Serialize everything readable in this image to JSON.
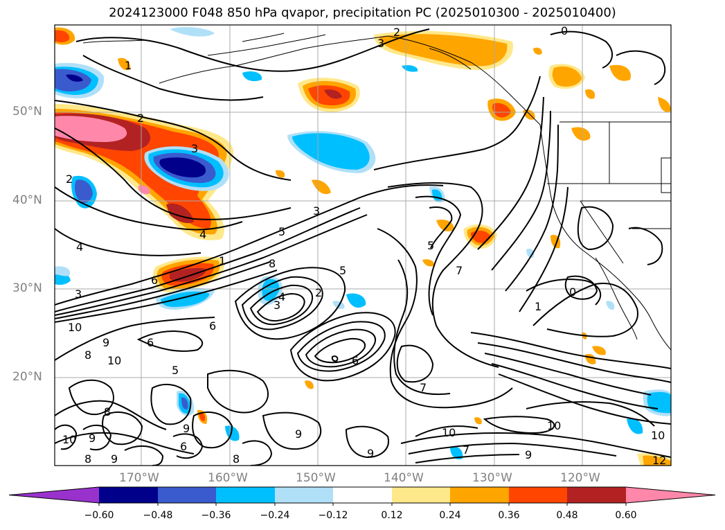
{
  "title": "2024123000 F048 850 hPa qvapor, precipitation PC (2025010300 - 2025010400)",
  "lat_labels": [
    "50°N",
    "40°N",
    "30°N",
    "20°N"
  ],
  "lon_labels": [
    "170°W",
    "160°W",
    "150°W",
    "140°W",
    "130°W",
    "120°W"
  ],
  "colorbar": {
    "ticks": [
      "−0.60",
      "−0.48",
      "−0.36",
      "−0.24",
      "−0.12",
      "0.12",
      "0.24",
      "0.36",
      "0.48",
      "0.60"
    ],
    "colors": [
      "#9932cc",
      "#00008b",
      "#3a5bcd",
      "#00bfff",
      "#b0e0f8",
      "#ffffff",
      "#ffe88a",
      "#ffa500",
      "#ff4500",
      "#b22222",
      "#ff88aa"
    ]
  },
  "contour_labels": [
    "2",
    "3",
    "0",
    "1",
    "2",
    "3",
    "2",
    "4",
    "3",
    "5",
    "4",
    "1",
    "6",
    "8",
    "5",
    "7",
    "5",
    "0",
    "1",
    "3",
    "2",
    "3",
    "4",
    "6",
    "10",
    "9",
    "8",
    "10",
    "6",
    "5",
    "6",
    "7",
    "9",
    "10",
    "12",
    "10",
    "9",
    "7",
    "10",
    "9",
    "8",
    "9",
    "10",
    "8",
    "9",
    "6",
    "8",
    "9"
  ]
}
